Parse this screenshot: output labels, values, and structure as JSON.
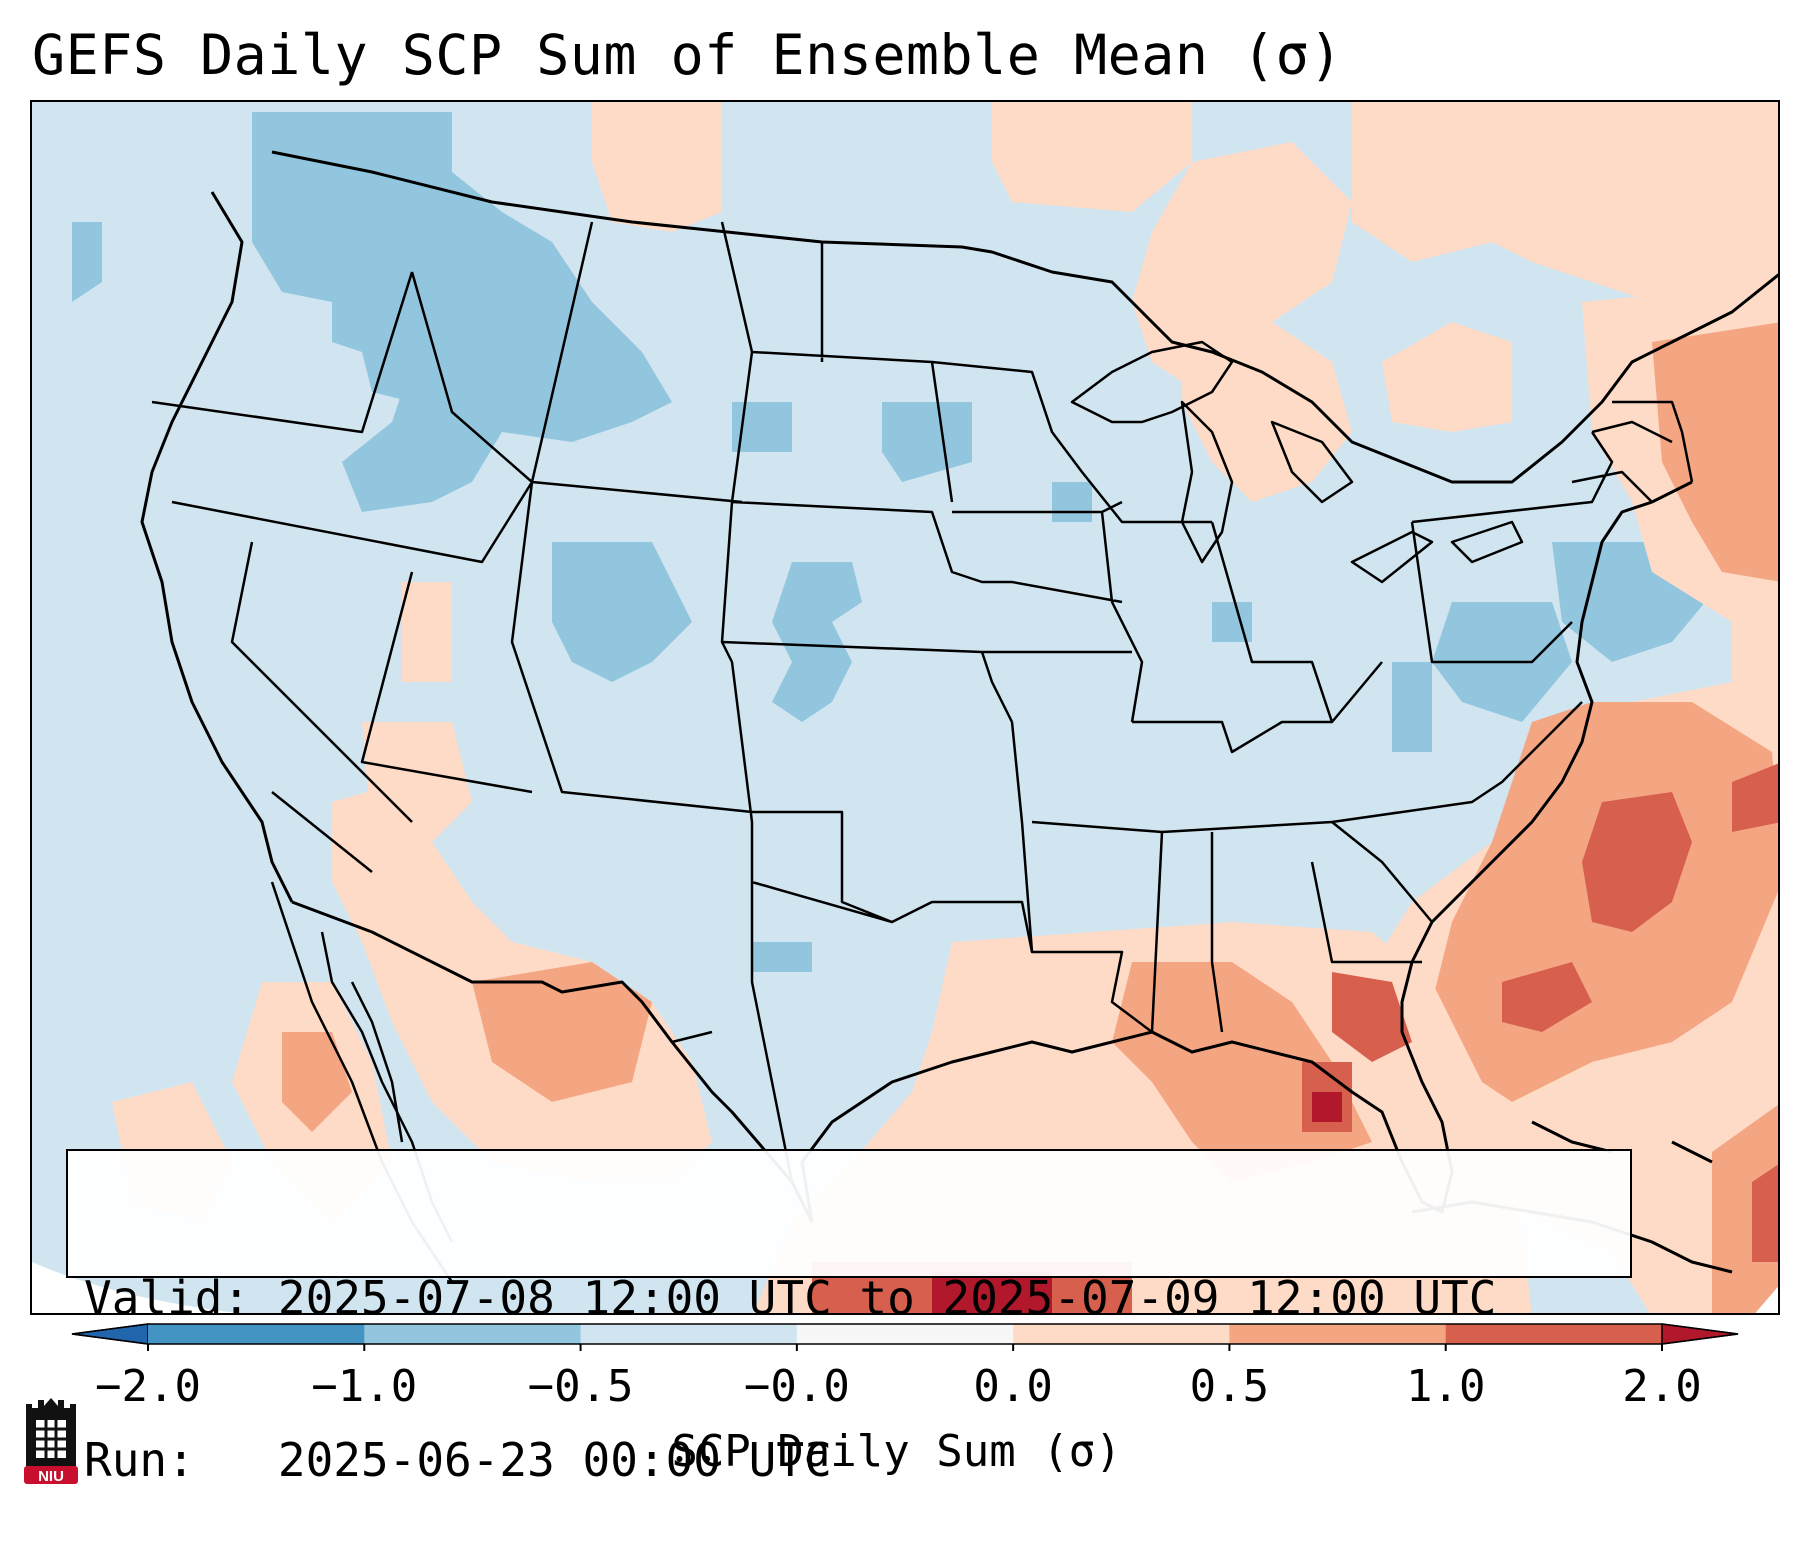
{
  "title": "GEFS Daily SCP Sum of Ensemble Mean (σ)",
  "info": {
    "valid_label": "Valid:",
    "valid_value": "2025-07-08 12:00 UTC to 2025-07-09 12:00 UTC",
    "run_label": "Run:",
    "run_value": "2025-06-23 00:00 UTC"
  },
  "colorbar": {
    "label": "SCP Daily Sum (σ)",
    "ticks": [
      "−2.0",
      "−1.0",
      "−0.5",
      "−0.0",
      "0.0",
      "0.5",
      "1.0",
      "2.0"
    ],
    "bins": [
      {
        "from": -2.0,
        "to": -1.0,
        "color": "#4393c3"
      },
      {
        "from": -1.0,
        "to": -0.5,
        "color": "#92c5de"
      },
      {
        "from": -0.5,
        "to": -0.0,
        "color": "#d1e5f0"
      },
      {
        "from": -0.0,
        "to": 0.0,
        "color": "#f7f7f7"
      },
      {
        "from": 0.0,
        "to": 0.5,
        "color": "#fddbc7"
      },
      {
        "from": 0.5,
        "to": 1.0,
        "color": "#f4a582"
      },
      {
        "from": 1.0,
        "to": 2.0,
        "color": "#d6604d"
      }
    ],
    "under_color": "#2166ac",
    "over_color": "#b2182b"
  },
  "logo": {
    "text": "NIU",
    "color": "#c8102e"
  },
  "colors": {
    "background_negative": "#d1e5f0",
    "outline": "#000000"
  }
}
